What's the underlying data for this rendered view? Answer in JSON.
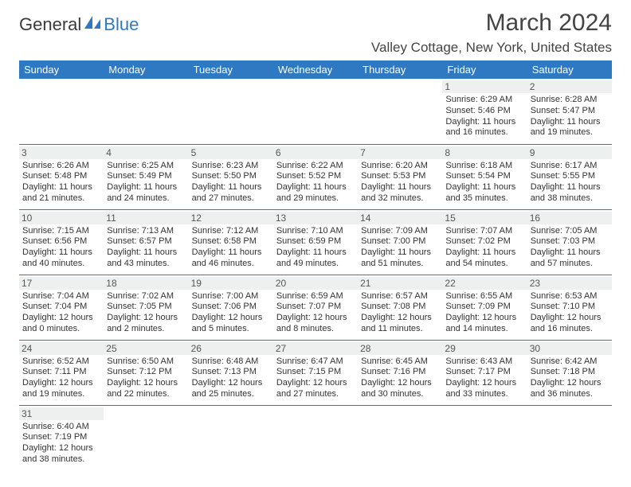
{
  "brand": {
    "word1": "General",
    "word2": "Blue"
  },
  "title": "March 2024",
  "location": "Valley Cottage, New York, United States",
  "colors": {
    "accent": "#2f79c2",
    "header_text": "#ffffff",
    "daynum_bg": "#eef0f0",
    "text": "#333333"
  },
  "weekdays": [
    "Sunday",
    "Monday",
    "Tuesday",
    "Wednesday",
    "Thursday",
    "Friday",
    "Saturday"
  ],
  "weeks": [
    [
      null,
      null,
      null,
      null,
      null,
      {
        "d": "1",
        "sr": "6:29 AM",
        "ss": "5:46 PM",
        "dl": "11 hours and 16 minutes."
      },
      {
        "d": "2",
        "sr": "6:28 AM",
        "ss": "5:47 PM",
        "dl": "11 hours and 19 minutes."
      }
    ],
    [
      {
        "d": "3",
        "sr": "6:26 AM",
        "ss": "5:48 PM",
        "dl": "11 hours and 21 minutes."
      },
      {
        "d": "4",
        "sr": "6:25 AM",
        "ss": "5:49 PM",
        "dl": "11 hours and 24 minutes."
      },
      {
        "d": "5",
        "sr": "6:23 AM",
        "ss": "5:50 PM",
        "dl": "11 hours and 27 minutes."
      },
      {
        "d": "6",
        "sr": "6:22 AM",
        "ss": "5:52 PM",
        "dl": "11 hours and 29 minutes."
      },
      {
        "d": "7",
        "sr": "6:20 AM",
        "ss": "5:53 PM",
        "dl": "11 hours and 32 minutes."
      },
      {
        "d": "8",
        "sr": "6:18 AM",
        "ss": "5:54 PM",
        "dl": "11 hours and 35 minutes."
      },
      {
        "d": "9",
        "sr": "6:17 AM",
        "ss": "5:55 PM",
        "dl": "11 hours and 38 minutes."
      }
    ],
    [
      {
        "d": "10",
        "sr": "7:15 AM",
        "ss": "6:56 PM",
        "dl": "11 hours and 40 minutes."
      },
      {
        "d": "11",
        "sr": "7:13 AM",
        "ss": "6:57 PM",
        "dl": "11 hours and 43 minutes."
      },
      {
        "d": "12",
        "sr": "7:12 AM",
        "ss": "6:58 PM",
        "dl": "11 hours and 46 minutes."
      },
      {
        "d": "13",
        "sr": "7:10 AM",
        "ss": "6:59 PM",
        "dl": "11 hours and 49 minutes."
      },
      {
        "d": "14",
        "sr": "7:09 AM",
        "ss": "7:00 PM",
        "dl": "11 hours and 51 minutes."
      },
      {
        "d": "15",
        "sr": "7:07 AM",
        "ss": "7:02 PM",
        "dl": "11 hours and 54 minutes."
      },
      {
        "d": "16",
        "sr": "7:05 AM",
        "ss": "7:03 PM",
        "dl": "11 hours and 57 minutes."
      }
    ],
    [
      {
        "d": "17",
        "sr": "7:04 AM",
        "ss": "7:04 PM",
        "dl": "12 hours and 0 minutes."
      },
      {
        "d": "18",
        "sr": "7:02 AM",
        "ss": "7:05 PM",
        "dl": "12 hours and 2 minutes."
      },
      {
        "d": "19",
        "sr": "7:00 AM",
        "ss": "7:06 PM",
        "dl": "12 hours and 5 minutes."
      },
      {
        "d": "20",
        "sr": "6:59 AM",
        "ss": "7:07 PM",
        "dl": "12 hours and 8 minutes."
      },
      {
        "d": "21",
        "sr": "6:57 AM",
        "ss": "7:08 PM",
        "dl": "12 hours and 11 minutes."
      },
      {
        "d": "22",
        "sr": "6:55 AM",
        "ss": "7:09 PM",
        "dl": "12 hours and 14 minutes."
      },
      {
        "d": "23",
        "sr": "6:53 AM",
        "ss": "7:10 PM",
        "dl": "12 hours and 16 minutes."
      }
    ],
    [
      {
        "d": "24",
        "sr": "6:52 AM",
        "ss": "7:11 PM",
        "dl": "12 hours and 19 minutes."
      },
      {
        "d": "25",
        "sr": "6:50 AM",
        "ss": "7:12 PM",
        "dl": "12 hours and 22 minutes."
      },
      {
        "d": "26",
        "sr": "6:48 AM",
        "ss": "7:13 PM",
        "dl": "12 hours and 25 minutes."
      },
      {
        "d": "27",
        "sr": "6:47 AM",
        "ss": "7:15 PM",
        "dl": "12 hours and 27 minutes."
      },
      {
        "d": "28",
        "sr": "6:45 AM",
        "ss": "7:16 PM",
        "dl": "12 hours and 30 minutes."
      },
      {
        "d": "29",
        "sr": "6:43 AM",
        "ss": "7:17 PM",
        "dl": "12 hours and 33 minutes."
      },
      {
        "d": "30",
        "sr": "6:42 AM",
        "ss": "7:18 PM",
        "dl": "12 hours and 36 minutes."
      }
    ],
    [
      {
        "d": "31",
        "sr": "6:40 AM",
        "ss": "7:19 PM",
        "dl": "12 hours and 38 minutes."
      },
      null,
      null,
      null,
      null,
      null,
      null
    ]
  ],
  "labels": {
    "sunrise": "Sunrise:",
    "sunset": "Sunset:",
    "daylight": "Daylight:"
  }
}
